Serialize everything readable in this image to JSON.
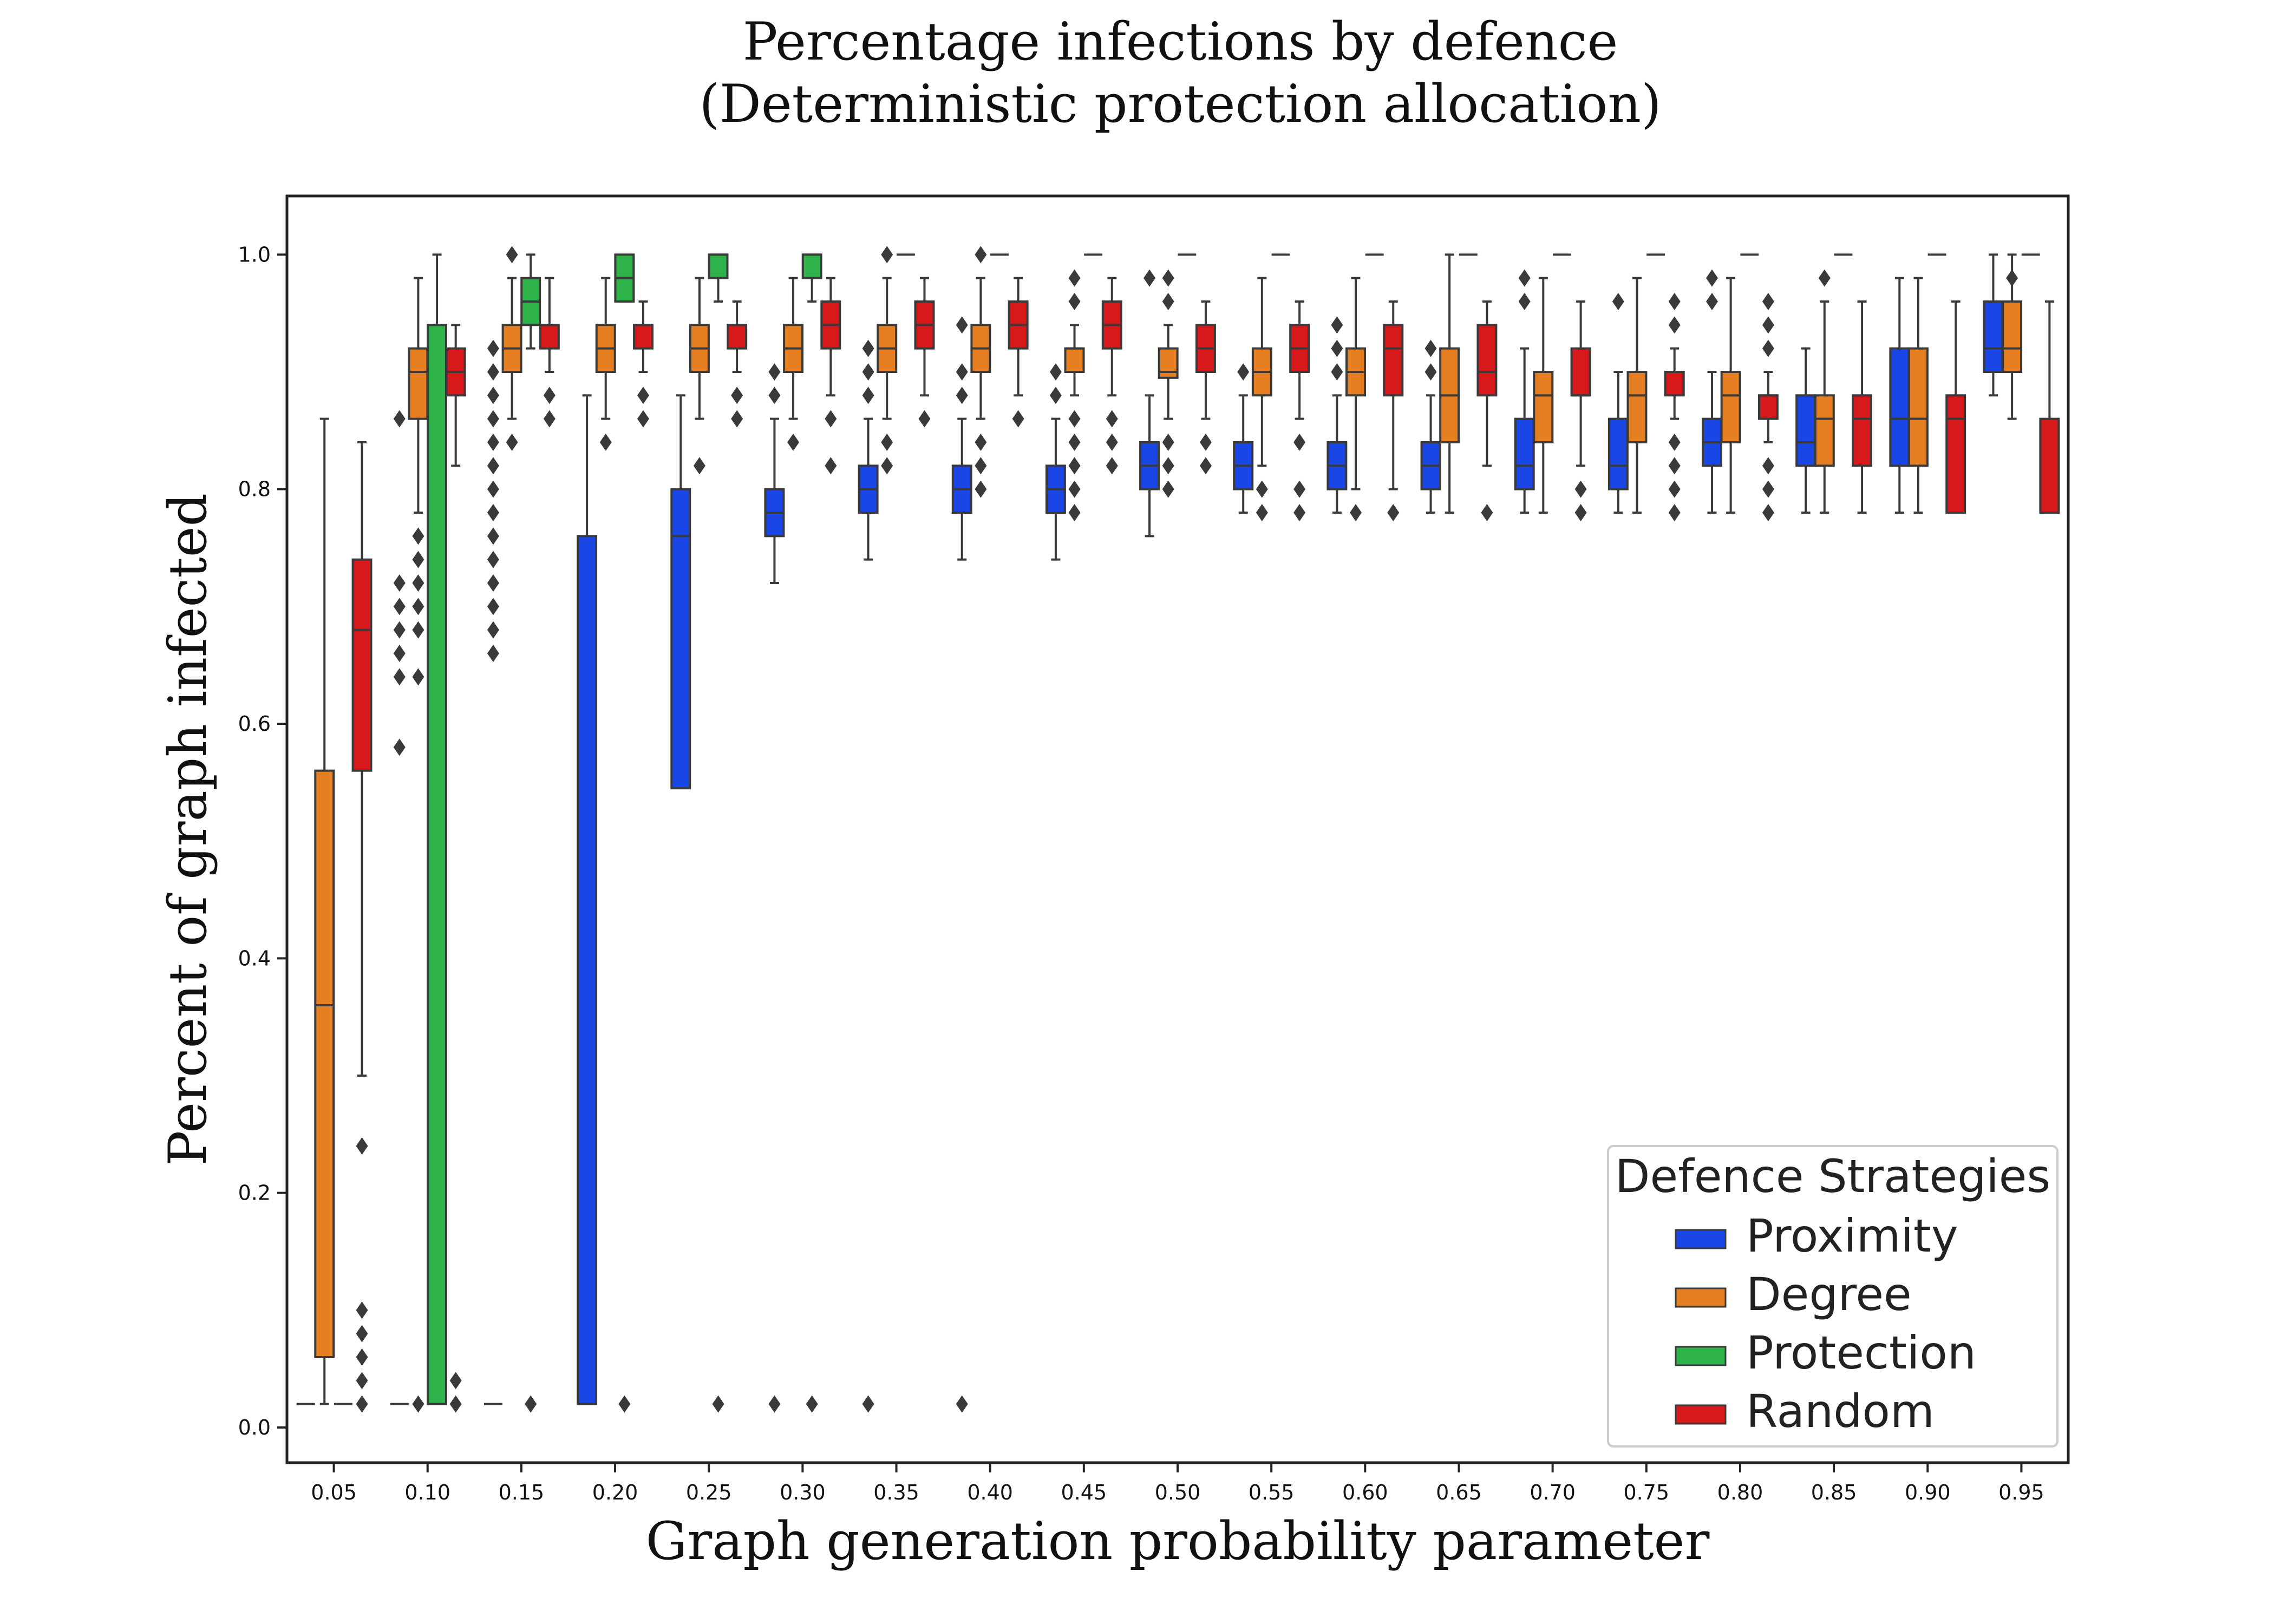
{
  "chart_data": {
    "type": "boxplot",
    "title_lines": [
      "Percentage infections by defence",
      "(Deterministic protection allocation)"
    ],
    "xlabel": "Graph generation probability parameter",
    "ylabel": "Percent of graph infected",
    "ylim": [
      -0.03,
      1.05
    ],
    "yticks": [
      "0.0",
      "0.2",
      "0.4",
      "0.6",
      "0.8",
      "1.0"
    ],
    "categories": [
      "0.05",
      "0.10",
      "0.15",
      "0.20",
      "0.25",
      "0.30",
      "0.35",
      "0.40",
      "0.45",
      "0.50",
      "0.55",
      "0.60",
      "0.65",
      "0.70",
      "0.75",
      "0.80",
      "0.85",
      "0.90",
      "0.95"
    ],
    "legend": {
      "title": "Defence Strategies",
      "position": "lower-right"
    },
    "series": [
      {
        "name": "Proximity",
        "color": "#1a46e6",
        "boxes": [
          {
            "q1": 0.02,
            "median": 0.02,
            "q3": 0.02,
            "wlo": 0.02,
            "whi": 0.02,
            "fliers": []
          },
          {
            "q1": 0.02,
            "median": 0.02,
            "q3": 0.02,
            "wlo": 0.02,
            "whi": 0.02,
            "fliers": [
              0.58,
              0.64,
              0.66,
              0.68,
              0.7,
              0.72,
              0.86
            ]
          },
          {
            "q1": 0.02,
            "median": 0.02,
            "q3": 0.02,
            "wlo": 0.02,
            "whi": 0.02,
            "fliers": [
              0.66,
              0.68,
              0.7,
              0.72,
              0.74,
              0.76,
              0.78,
              0.8,
              0.82,
              0.84,
              0.86,
              0.88,
              0.9,
              0.92
            ]
          },
          {
            "q1": 0.02,
            "median": 0.02,
            "q3": 0.76,
            "wlo": 0.02,
            "whi": 0.88,
            "fliers": []
          },
          {
            "q1": 0.545,
            "median": 0.76,
            "q3": 0.8,
            "wlo": 0.545,
            "whi": 0.88,
            "fliers": []
          },
          {
            "q1": 0.76,
            "median": 0.78,
            "q3": 0.8,
            "wlo": 0.72,
            "whi": 0.86,
            "fliers": [
              0.88,
              0.9,
              0.02
            ]
          },
          {
            "q1": 0.78,
            "median": 0.8,
            "q3": 0.82,
            "wlo": 0.74,
            "whi": 0.86,
            "fliers": [
              0.88,
              0.9,
              0.92,
              0.02
            ]
          },
          {
            "q1": 0.78,
            "median": 0.8,
            "q3": 0.82,
            "wlo": 0.74,
            "whi": 0.86,
            "fliers": [
              0.88,
              0.9,
              0.94,
              0.02
            ]
          },
          {
            "q1": 0.78,
            "median": 0.8,
            "q3": 0.82,
            "wlo": 0.74,
            "whi": 0.86,
            "fliers": [
              0.88,
              0.9
            ]
          },
          {
            "q1": 0.8,
            "median": 0.82,
            "q3": 0.84,
            "wlo": 0.76,
            "whi": 0.88,
            "fliers": [
              0.98
            ]
          },
          {
            "q1": 0.8,
            "median": 0.82,
            "q3": 0.84,
            "wlo": 0.78,
            "whi": 0.88,
            "fliers": [
              0.9
            ]
          },
          {
            "q1": 0.8,
            "median": 0.82,
            "q3": 0.84,
            "wlo": 0.78,
            "whi": 0.88,
            "fliers": [
              0.9,
              0.92,
              0.94
            ]
          },
          {
            "q1": 0.8,
            "median": 0.82,
            "q3": 0.84,
            "wlo": 0.78,
            "whi": 0.88,
            "fliers": [
              0.9,
              0.92
            ]
          },
          {
            "q1": 0.8,
            "median": 0.82,
            "q3": 0.86,
            "wlo": 0.78,
            "whi": 0.92,
            "fliers": [
              0.96,
              0.98
            ]
          },
          {
            "q1": 0.8,
            "median": 0.82,
            "q3": 0.86,
            "wlo": 0.78,
            "whi": 0.9,
            "fliers": [
              0.96
            ]
          },
          {
            "q1": 0.82,
            "median": 0.84,
            "q3": 0.86,
            "wlo": 0.78,
            "whi": 0.9,
            "fliers": [
              0.96,
              0.98
            ]
          },
          {
            "q1": 0.82,
            "median": 0.84,
            "q3": 0.88,
            "wlo": 0.78,
            "whi": 0.92,
            "fliers": []
          },
          {
            "q1": 0.82,
            "median": 0.86,
            "q3": 0.92,
            "wlo": 0.78,
            "whi": 0.98,
            "fliers": []
          },
          {
            "q1": 0.9,
            "median": 0.92,
            "q3": 0.96,
            "wlo": 0.88,
            "whi": 1.0,
            "fliers": []
          }
        ]
      },
      {
        "name": "Degree",
        "color": "#e67e22",
        "boxes": [
          {
            "q1": 0.06,
            "median": 0.36,
            "q3": 0.56,
            "wlo": 0.02,
            "whi": 0.86,
            "fliers": []
          },
          {
            "q1": 0.86,
            "median": 0.9,
            "q3": 0.92,
            "wlo": 0.78,
            "whi": 0.98,
            "fliers": [
              0.64,
              0.68,
              0.7,
              0.72,
              0.74,
              0.76,
              0.02
            ]
          },
          {
            "q1": 0.9,
            "median": 0.92,
            "q3": 0.94,
            "wlo": 0.86,
            "whi": 0.98,
            "fliers": [
              0.84,
              1.0
            ]
          },
          {
            "q1": 0.9,
            "median": 0.92,
            "q3": 0.94,
            "wlo": 0.86,
            "whi": 0.98,
            "fliers": [
              0.84
            ]
          },
          {
            "q1": 0.9,
            "median": 0.92,
            "q3": 0.94,
            "wlo": 0.86,
            "whi": 0.98,
            "fliers": [
              0.82
            ]
          },
          {
            "q1": 0.9,
            "median": 0.92,
            "q3": 0.94,
            "wlo": 0.86,
            "whi": 0.98,
            "fliers": [
              0.84
            ]
          },
          {
            "q1": 0.9,
            "median": 0.92,
            "q3": 0.94,
            "wlo": 0.86,
            "whi": 0.98,
            "fliers": [
              0.82,
              0.84,
              1.0
            ]
          },
          {
            "q1": 0.9,
            "median": 0.92,
            "q3": 0.94,
            "wlo": 0.86,
            "whi": 0.98,
            "fliers": [
              0.8,
              0.82,
              0.84,
              1.0
            ]
          },
          {
            "q1": 0.9,
            "median": 0.92,
            "q3": 0.92,
            "wlo": 0.88,
            "whi": 0.94,
            "fliers": [
              0.78,
              0.8,
              0.82,
              0.84,
              0.86,
              0.96,
              0.98
            ]
          },
          {
            "q1": 0.895,
            "median": 0.9,
            "q3": 0.92,
            "wlo": 0.86,
            "whi": 0.94,
            "fliers": [
              0.8,
              0.82,
              0.84,
              0.96,
              0.98
            ]
          },
          {
            "q1": 0.88,
            "median": 0.9,
            "q3": 0.92,
            "wlo": 0.82,
            "whi": 0.98,
            "fliers": [
              0.78,
              0.8
            ]
          },
          {
            "q1": 0.88,
            "median": 0.9,
            "q3": 0.92,
            "wlo": 0.8,
            "whi": 0.98,
            "fliers": [
              0.78
            ]
          },
          {
            "q1": 0.84,
            "median": 0.88,
            "q3": 0.92,
            "wlo": 0.78,
            "whi": 1.0,
            "fliers": []
          },
          {
            "q1": 0.84,
            "median": 0.88,
            "q3": 0.9,
            "wlo": 0.78,
            "whi": 0.98,
            "fliers": []
          },
          {
            "q1": 0.84,
            "median": 0.88,
            "q3": 0.9,
            "wlo": 0.78,
            "whi": 0.98,
            "fliers": []
          },
          {
            "q1": 0.84,
            "median": 0.88,
            "q3": 0.9,
            "wlo": 0.78,
            "whi": 0.98,
            "fliers": []
          },
          {
            "q1": 0.82,
            "median": 0.86,
            "q3": 0.88,
            "wlo": 0.78,
            "whi": 0.96,
            "fliers": [
              0.98
            ]
          },
          {
            "q1": 0.82,
            "median": 0.86,
            "q3": 0.92,
            "wlo": 0.78,
            "whi": 0.98,
            "fliers": []
          },
          {
            "q1": 0.9,
            "median": 0.92,
            "q3": 0.96,
            "wlo": 0.86,
            "whi": 1.0,
            "fliers": [
              0.98
            ]
          }
        ]
      },
      {
        "name": "Protection",
        "color": "#2db34a",
        "boxes": [
          {
            "q1": 0.02,
            "median": 0.02,
            "q3": 0.02,
            "wlo": 0.02,
            "whi": 0.02,
            "fliers": []
          },
          {
            "q1": 0.02,
            "median": 0.02,
            "q3": 0.94,
            "wlo": 0.02,
            "whi": 1.0,
            "fliers": []
          },
          {
            "q1": 0.94,
            "median": 0.96,
            "q3": 0.98,
            "wlo": 0.92,
            "whi": 1.0,
            "fliers": [
              0.02
            ]
          },
          {
            "q1": 0.96,
            "median": 0.98,
            "q3": 1.0,
            "wlo": 0.96,
            "whi": 1.0,
            "fliers": [
              0.02
            ]
          },
          {
            "q1": 0.98,
            "median": 1.0,
            "q3": 1.0,
            "wlo": 0.96,
            "whi": 1.0,
            "fliers": [
              0.02
            ]
          },
          {
            "q1": 0.98,
            "median": 1.0,
            "q3": 1.0,
            "wlo": 0.96,
            "whi": 1.0,
            "fliers": [
              0.02
            ]
          },
          {
            "q1": 1.0,
            "median": 1.0,
            "q3": 1.0,
            "wlo": 1.0,
            "whi": 1.0,
            "fliers": []
          },
          {
            "q1": 1.0,
            "median": 1.0,
            "q3": 1.0,
            "wlo": 1.0,
            "whi": 1.0,
            "fliers": []
          },
          {
            "q1": 1.0,
            "median": 1.0,
            "q3": 1.0,
            "wlo": 1.0,
            "whi": 1.0,
            "fliers": []
          },
          {
            "q1": 1.0,
            "median": 1.0,
            "q3": 1.0,
            "wlo": 1.0,
            "whi": 1.0,
            "fliers": []
          },
          {
            "q1": 1.0,
            "median": 1.0,
            "q3": 1.0,
            "wlo": 1.0,
            "whi": 1.0,
            "fliers": []
          },
          {
            "q1": 1.0,
            "median": 1.0,
            "q3": 1.0,
            "wlo": 1.0,
            "whi": 1.0,
            "fliers": []
          },
          {
            "q1": 1.0,
            "median": 1.0,
            "q3": 1.0,
            "wlo": 1.0,
            "whi": 1.0,
            "fliers": []
          },
          {
            "q1": 1.0,
            "median": 1.0,
            "q3": 1.0,
            "wlo": 1.0,
            "whi": 1.0,
            "fliers": []
          },
          {
            "q1": 1.0,
            "median": 1.0,
            "q3": 1.0,
            "wlo": 1.0,
            "whi": 1.0,
            "fliers": []
          },
          {
            "q1": 1.0,
            "median": 1.0,
            "q3": 1.0,
            "wlo": 1.0,
            "whi": 1.0,
            "fliers": []
          },
          {
            "q1": 1.0,
            "median": 1.0,
            "q3": 1.0,
            "wlo": 1.0,
            "whi": 1.0,
            "fliers": []
          },
          {
            "q1": 1.0,
            "median": 1.0,
            "q3": 1.0,
            "wlo": 1.0,
            "whi": 1.0,
            "fliers": []
          },
          {
            "q1": 1.0,
            "median": 1.0,
            "q3": 1.0,
            "wlo": 1.0,
            "whi": 1.0,
            "fliers": []
          }
        ]
      },
      {
        "name": "Random",
        "color": "#d7191c",
        "boxes": [
          {
            "q1": 0.56,
            "median": 0.68,
            "q3": 0.74,
            "wlo": 0.3,
            "whi": 0.84,
            "fliers": [
              0.02,
              0.04,
              0.06,
              0.08,
              0.1,
              0.24
            ]
          },
          {
            "q1": 0.88,
            "median": 0.9,
            "q3": 0.92,
            "wlo": 0.82,
            "whi": 0.94,
            "fliers": [
              0.02,
              0.04
            ]
          },
          {
            "q1": 0.92,
            "median": 0.94,
            "q3": 0.94,
            "wlo": 0.9,
            "whi": 0.98,
            "fliers": [
              0.86,
              0.88
            ]
          },
          {
            "q1": 0.92,
            "median": 0.94,
            "q3": 0.94,
            "wlo": 0.9,
            "whi": 0.96,
            "fliers": [
              0.86,
              0.88
            ]
          },
          {
            "q1": 0.92,
            "median": 0.94,
            "q3": 0.94,
            "wlo": 0.9,
            "whi": 0.96,
            "fliers": [
              0.86,
              0.88
            ]
          },
          {
            "q1": 0.92,
            "median": 0.94,
            "q3": 0.96,
            "wlo": 0.88,
            "whi": 0.98,
            "fliers": [
              0.82,
              0.86
            ]
          },
          {
            "q1": 0.92,
            "median": 0.94,
            "q3": 0.96,
            "wlo": 0.88,
            "whi": 0.98,
            "fliers": [
              0.86
            ]
          },
          {
            "q1": 0.92,
            "median": 0.94,
            "q3": 0.96,
            "wlo": 0.88,
            "whi": 0.98,
            "fliers": [
              0.86
            ]
          },
          {
            "q1": 0.92,
            "median": 0.94,
            "q3": 0.96,
            "wlo": 0.88,
            "whi": 0.98,
            "fliers": [
              0.82,
              0.84,
              0.86
            ]
          },
          {
            "q1": 0.9,
            "median": 0.92,
            "q3": 0.94,
            "wlo": 0.86,
            "whi": 0.96,
            "fliers": [
              0.82,
              0.84
            ]
          },
          {
            "q1": 0.9,
            "median": 0.92,
            "q3": 0.94,
            "wlo": 0.86,
            "whi": 0.96,
            "fliers": [
              0.78,
              0.8,
              0.84
            ]
          },
          {
            "q1": 0.88,
            "median": 0.92,
            "q3": 0.94,
            "wlo": 0.8,
            "whi": 0.96,
            "fliers": [
              0.78
            ]
          },
          {
            "q1": 0.88,
            "median": 0.9,
            "q3": 0.94,
            "wlo": 0.82,
            "whi": 0.96,
            "fliers": [
              0.78
            ]
          },
          {
            "q1": 0.88,
            "median": 0.88,
            "q3": 0.92,
            "wlo": 0.82,
            "whi": 0.96,
            "fliers": [
              0.78,
              0.8
            ]
          },
          {
            "q1": 0.88,
            "median": 0.9,
            "q3": 0.9,
            "wlo": 0.86,
            "whi": 0.92,
            "fliers": [
              0.78,
              0.8,
              0.82,
              0.84,
              0.94,
              0.96
            ]
          },
          {
            "q1": 0.86,
            "median": 0.88,
            "q3": 0.88,
            "wlo": 0.84,
            "whi": 0.9,
            "fliers": [
              0.78,
              0.8,
              0.82,
              0.92,
              0.94,
              0.96
            ]
          },
          {
            "q1": 0.82,
            "median": 0.86,
            "q3": 0.88,
            "wlo": 0.78,
            "whi": 0.96,
            "fliers": []
          },
          {
            "q1": 0.78,
            "median": 0.86,
            "q3": 0.88,
            "wlo": 0.78,
            "whi": 0.96,
            "fliers": []
          },
          {
            "q1": 0.78,
            "median": 0.78,
            "q3": 0.86,
            "wlo": 0.78,
            "whi": 0.96,
            "fliers": []
          }
        ]
      }
    ]
  }
}
